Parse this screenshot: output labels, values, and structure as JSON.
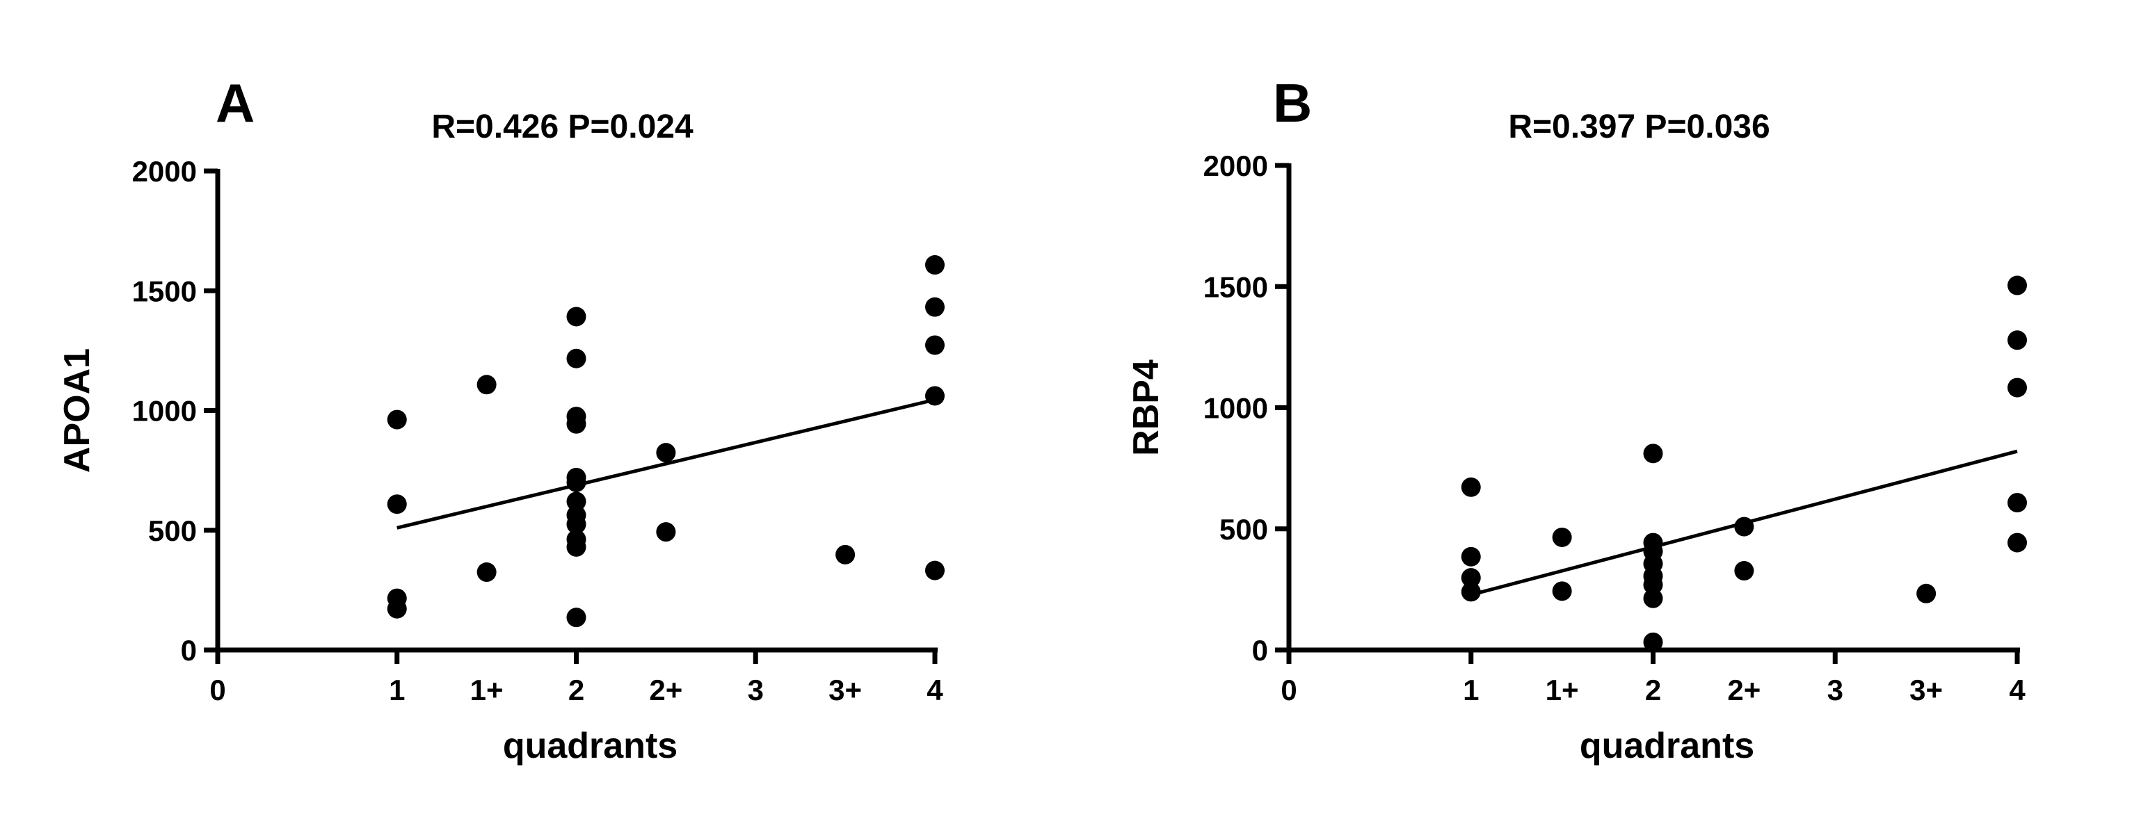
{
  "chart_data": [
    {
      "type": "scatter",
      "panel_label": "A",
      "title": "R=0.426 P=0.024",
      "xlabel": "quadrants",
      "ylabel": "APOA1",
      "xlim": [
        0,
        4
      ],
      "ylim": [
        0,
        2000
      ],
      "x_ticks": [
        0,
        1,
        1.5,
        2,
        2.5,
        3,
        3.5,
        4
      ],
      "x_tick_labels": [
        "0",
        "1",
        "1+",
        "2",
        "2+",
        "3",
        "3+",
        "4"
      ],
      "y_ticks": [
        0,
        500,
        1000,
        1500,
        2000
      ],
      "y_tick_labels": [
        "0",
        "500",
        "1000",
        "1500",
        "2000"
      ],
      "grid": false,
      "points": [
        [
          1,
          962
        ],
        [
          1,
          609
        ],
        [
          1,
          216
        ],
        [
          1,
          172
        ],
        [
          1.5,
          1108
        ],
        [
          1.5,
          325
        ],
        [
          2,
          1392
        ],
        [
          2,
          1217
        ],
        [
          2,
          975
        ],
        [
          2,
          944
        ],
        [
          2,
          720
        ],
        [
          2,
          700
        ],
        [
          2,
          620
        ],
        [
          2,
          563
        ],
        [
          2,
          525
        ],
        [
          2,
          462
        ],
        [
          2,
          430
        ],
        [
          2,
          136
        ],
        [
          2.5,
          824
        ],
        [
          2.5,
          493
        ],
        [
          3.5,
          398
        ],
        [
          4,
          1608
        ],
        [
          4,
          1432
        ],
        [
          4,
          1273
        ],
        [
          4,
          1061
        ],
        [
          4,
          332
        ]
      ],
      "fit_line": [
        [
          1,
          510
        ],
        [
          4,
          1045
        ]
      ]
    },
    {
      "type": "scatter",
      "panel_label": "B",
      "title": "R=0.397 P=0.036",
      "xlabel": "quadrants",
      "ylabel": "RBP4",
      "xlim": [
        0,
        4
      ],
      "ylim": [
        0,
        2000
      ],
      "x_ticks": [
        0,
        1,
        1.5,
        2,
        2.5,
        3,
        3.5,
        4
      ],
      "x_tick_labels": [
        "0",
        "1",
        "1+",
        "2",
        "2+",
        "3",
        "3+",
        "4"
      ],
      "y_ticks": [
        0,
        500,
        1000,
        1500,
        2000
      ],
      "y_tick_labels": [
        "0",
        "500",
        "1000",
        "1500",
        "2000"
      ],
      "grid": false,
      "points": [
        [
          1,
          672
        ],
        [
          1,
          385
        ],
        [
          1,
          298
        ],
        [
          1,
          240
        ],
        [
          1.5,
          465
        ],
        [
          1.5,
          243
        ],
        [
          2,
          811
        ],
        [
          2,
          443
        ],
        [
          2,
          407
        ],
        [
          2,
          356
        ],
        [
          2,
          305
        ],
        [
          2,
          269
        ],
        [
          2,
          213
        ],
        [
          2,
          32
        ],
        [
          2.5,
          509
        ],
        [
          2.5,
          327
        ],
        [
          3.5,
          233
        ],
        [
          4,
          1505
        ],
        [
          4,
          1279
        ],
        [
          4,
          1083
        ],
        [
          4,
          608
        ],
        [
          4,
          443
        ]
      ],
      "fit_line": [
        [
          1,
          228
        ],
        [
          4,
          820
        ]
      ]
    }
  ]
}
